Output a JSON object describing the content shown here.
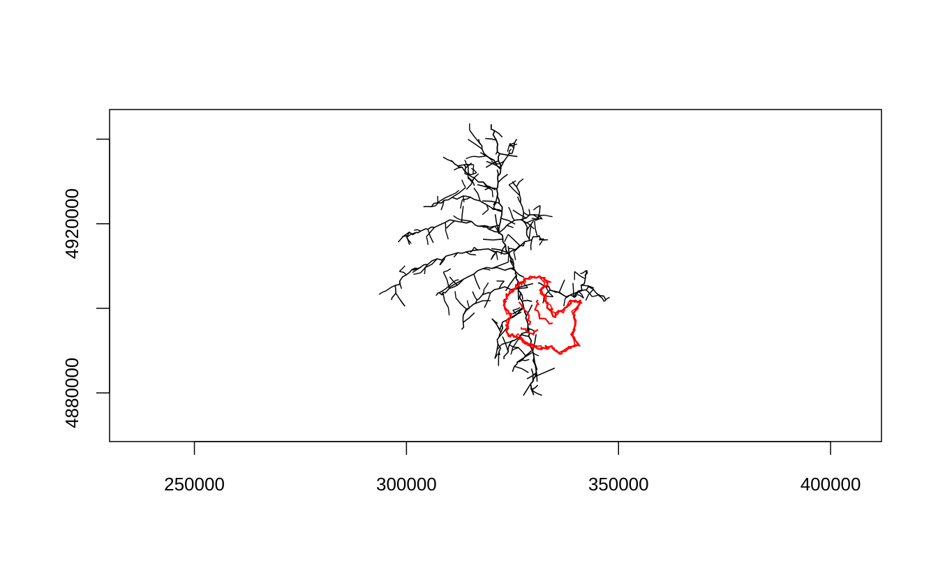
{
  "chart_data": {
    "type": "map",
    "title": "",
    "xlabel": "",
    "ylabel": "",
    "xlim": [
      230000,
      412000
    ],
    "ylim": [
      4868500,
      4947000
    ],
    "x_ticks": [
      250000,
      300000,
      350000,
      400000
    ],
    "x_tick_labels": [
      "250000",
      "300000",
      "350000",
      "400000"
    ],
    "y_ticks": [
      4880000,
      4900000,
      4920000,
      4940000
    ],
    "y_tick_labels": [
      "4880000",
      "",
      "4920000",
      ""
    ],
    "grid": false,
    "legend": "none",
    "series": [
      {
        "color": "#000000",
        "kind": "river network",
        "extent": {
          "x": [
            296000,
            347000
          ],
          "y": [
            4879500,
            4943500
          ]
        },
        "trunk": [
          [
            320000,
            4943500
          ],
          [
            321500,
            4938000
          ],
          [
            322000,
            4933000
          ],
          [
            321000,
            4928000
          ],
          [
            322500,
            4923000
          ],
          [
            322000,
            4918000
          ],
          [
            324000,
            4913000
          ],
          [
            325500,
            4909000
          ],
          [
            326500,
            4905000
          ],
          [
            327500,
            4900000
          ],
          [
            329000,
            4895000
          ],
          [
            329500,
            4890000
          ],
          [
            330500,
            4885000
          ],
          [
            329500,
            4882000
          ],
          [
            330000,
            4879500
          ]
        ],
        "branches": [
          [
            [
              321000,
              4928000
            ],
            [
              317000,
              4930000
            ],
            [
              313000,
              4933000
            ],
            [
              310500,
              4935000
            ]
          ],
          [
            [
              322000,
              4933000
            ],
            [
              318500,
              4937000
            ],
            [
              317000,
              4940000
            ]
          ],
          [
            [
              322000,
              4933000
            ],
            [
              325000,
              4937000
            ],
            [
              326000,
              4940000
            ]
          ],
          [
            [
              322500,
              4923000
            ],
            [
              318000,
              4925000
            ],
            [
              313000,
              4926500
            ],
            [
              308000,
              4925000
            ],
            [
              304000,
              4924000
            ]
          ],
          [
            [
              322000,
              4918000
            ],
            [
              316000,
              4920000
            ],
            [
              311000,
              4921000
            ],
            [
              306000,
              4919000
            ],
            [
              302000,
              4918000
            ],
            [
              299000,
              4917000
            ]
          ],
          [
            [
              322000,
              4918000
            ],
            [
              326000,
              4921000
            ],
            [
              330000,
              4922000
            ],
            [
              332000,
              4921000
            ]
          ],
          [
            [
              324000,
              4913000
            ],
            [
              318000,
              4914000
            ],
            [
              312000,
              4913000
            ],
            [
              306000,
              4911000
            ],
            [
              301000,
              4909000
            ],
            [
              298000,
              4906000
            ],
            [
              296500,
              4902000
            ]
          ],
          [
            [
              324000,
              4913000
            ],
            [
              327500,
              4915000
            ],
            [
              330500,
              4917000
            ],
            [
              332500,
              4916000
            ]
          ],
          [
            [
              325500,
              4909000
            ],
            [
              319000,
              4909500
            ],
            [
              313500,
              4907000
            ],
            [
              309000,
              4904000
            ],
            [
              307000,
              4903000
            ]
          ],
          [
            [
              326500,
              4905000
            ],
            [
              321000,
              4904500
            ],
            [
              316500,
              4902000
            ],
            [
              314000,
              4899000
            ],
            [
              313000,
              4895000
            ]
          ],
          [
            [
              327500,
              4900000
            ],
            [
              323000,
              4897000
            ],
            [
              321500,
              4893000
            ],
            [
              322000,
              4889000
            ]
          ],
          [
            [
              329000,
              4895000
            ],
            [
              325000,
              4892000
            ],
            [
              323000,
              4888000
            ]
          ],
          [
            [
              329500,
              4890000
            ],
            [
              326500,
              4887500
            ],
            [
              325000,
              4885000
            ]
          ],
          [
            [
              331000,
              4906000
            ],
            [
              335000,
              4904000
            ],
            [
              339500,
              4902500
            ],
            [
              343000,
              4905000
            ],
            [
              347000,
              4902000
            ]
          ],
          [
            [
              339500,
              4902500
            ],
            [
              342000,
              4906000
            ],
            [
              342500,
              4909000
            ]
          ],
          [
            [
              325000,
              4930000
            ],
            [
              327000,
              4926000
            ],
            [
              328000,
              4920000
            ],
            [
              329000,
              4916000
            ]
          ],
          [
            [
              316000,
              4929000
            ],
            [
              314500,
              4931000
            ],
            [
              313500,
              4934000
            ]
          ]
        ]
      },
      {
        "color": "#ff0000",
        "kind": "outline",
        "extent": {
          "x": [
            323000,
            341000
          ],
          "y": [
            4889500,
            4907500
          ]
        },
        "outline": [
          [
            328000,
            4907000
          ],
          [
            331500,
            4907500
          ],
          [
            333500,
            4906000
          ],
          [
            331500,
            4904500
          ],
          [
            332500,
            4903000
          ],
          [
            333500,
            4900500
          ],
          [
            335000,
            4898000
          ],
          [
            337000,
            4900000
          ],
          [
            339000,
            4901500
          ],
          [
            341000,
            4901500
          ],
          [
            339500,
            4899000
          ],
          [
            340000,
            4896000
          ],
          [
            339000,
            4893500
          ],
          [
            340500,
            4891500
          ],
          [
            338000,
            4890500
          ],
          [
            336000,
            4889500
          ],
          [
            334000,
            4891000
          ],
          [
            332000,
            4890500
          ],
          [
            330000,
            4891000
          ],
          [
            328000,
            4892000
          ],
          [
            326000,
            4893500
          ],
          [
            324000,
            4893500
          ],
          [
            323500,
            4896000
          ],
          [
            324500,
            4898500
          ],
          [
            323000,
            4900500
          ],
          [
            323500,
            4903000
          ],
          [
            325000,
            4904000
          ],
          [
            326500,
            4905500
          ]
        ],
        "inner": [
          [
            [
              326500,
              4901500
            ],
            [
              328500,
              4899000
            ],
            [
              329000,
              4896000
            ]
          ],
          [
            [
              331000,
              4902000
            ],
            [
              330500,
              4899500
            ],
            [
              332000,
              4897500
            ],
            [
              334500,
              4896500
            ]
          ],
          [
            [
              327000,
              4895500
            ],
            [
              329500,
              4894000
            ],
            [
              331000,
              4895000
            ]
          ]
        ]
      }
    ]
  }
}
